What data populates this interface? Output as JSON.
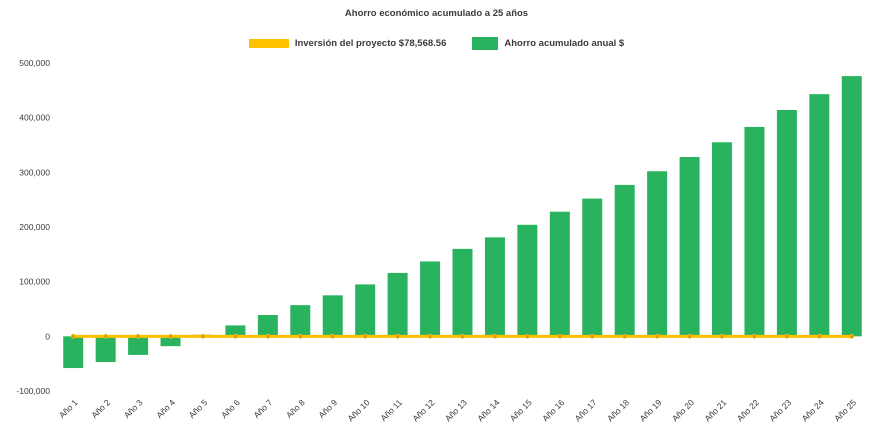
{
  "title": "Ahorro económico acumulado a 25 años",
  "legend": {
    "items": [
      {
        "label": "Inversión del proyecto $78,568.56",
        "color": "#ffc000",
        "swatch": "line"
      },
      {
        "label": "Ahorro acumulado anual $",
        "color": "#29b35f",
        "swatch": "bar"
      }
    ]
  },
  "chart_data": {
    "type": "bar",
    "title": "Ahorro económico acumulado a 25 años",
    "categories": [
      "Año 1",
      "Año 2",
      "Año 3",
      "Año 4",
      "Año 5",
      "Año 6",
      "Año 7",
      "Año 8",
      "Año 9",
      "Año 10",
      "Año 11",
      "Año 12",
      "Año 13",
      "Año 14",
      "Año 15",
      "Año 16",
      "Año 17",
      "Año 18",
      "Año 19",
      "Año 20",
      "Año 21",
      "Año 22",
      "Año 23",
      "Año 24",
      "Año 25"
    ],
    "series": [
      {
        "name": "Ahorro acumulado anual $",
        "type": "bar",
        "color": "#29b35f",
        "values": [
          -58000,
          -47000,
          -34000,
          -18000,
          3000,
          20000,
          39000,
          57000,
          75000,
          95000,
          116000,
          137000,
          160000,
          181000,
          204000,
          228000,
          252000,
          277000,
          302000,
          328000,
          355000,
          383000,
          414000,
          443000,
          476000
        ]
      },
      {
        "name": "Inversión del proyecto $78,568.56",
        "type": "line",
        "color": "#ffc000",
        "marker": "circle",
        "marker_color": "#d89c00",
        "constant_value": 0
      }
    ],
    "ylim": [
      -100000,
      500000
    ],
    "yticks": [
      -100000,
      0,
      100000,
      200000,
      300000,
      400000,
      500000
    ],
    "grid": false,
    "legend_position": "top",
    "x_label_rotation": -45,
    "axis_text_color": "#3b3b3b"
  },
  "colors": {
    "background": "#ffffff",
    "text": "#3b3b3b",
    "bar": "#29b35f",
    "line": "#ffc000"
  }
}
